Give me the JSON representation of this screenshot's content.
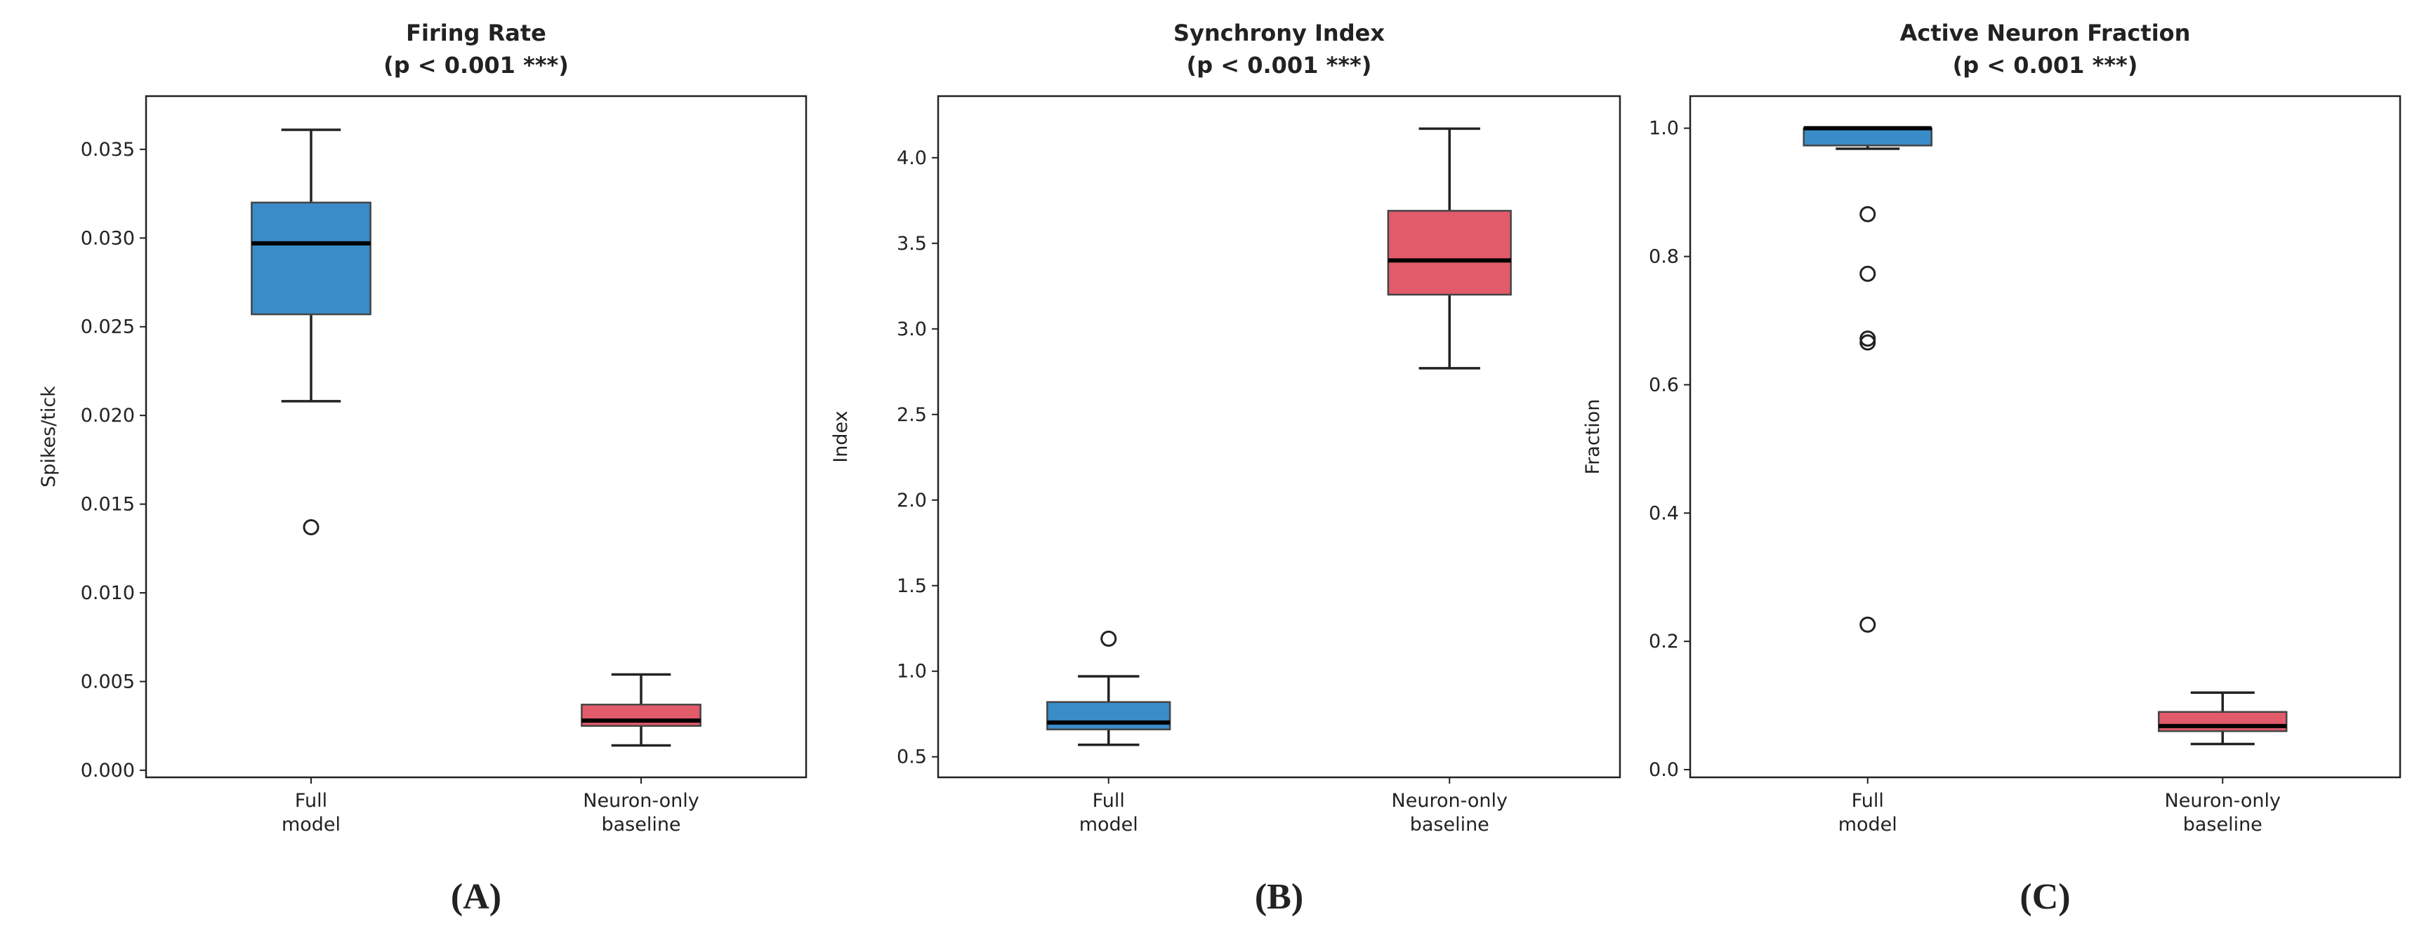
{
  "chart_data": [
    {
      "type": "box",
      "title": "Firing Rate",
      "subtitle": "(p < 0.001 ***)",
      "ylabel": "Spikes/tick",
      "panel_label": "(A)",
      "categories": [
        "Full model",
        "Neuron-only baseline"
      ],
      "colors": [
        "#3a8cc8",
        "#e25b6b"
      ],
      "boxes": [
        {
          "whislo": 0.0208,
          "q1": 0.0257,
          "med": 0.0297,
          "q3": 0.032,
          "whishi": 0.0361,
          "fliers": [
            0.0137
          ]
        },
        {
          "whislo": 0.0014,
          "q1": 0.0025,
          "med": 0.0028,
          "q3": 0.0037,
          "whishi": 0.0054,
          "fliers": []
        }
      ],
      "ylim": [
        -0.0004,
        0.038
      ],
      "yticks": [
        {
          "value": 0,
          "label": "0.000"
        },
        0.005,
        {
          "value": 0.01,
          "label": "0.010"
        },
        0.015,
        {
          "value": 0.02,
          "label": "0.020"
        },
        0.025,
        {
          "value": 0.03,
          "label": "0.030"
        },
        0.035
      ]
    },
    {
      "type": "box",
      "title": "Synchrony Index",
      "subtitle": "(p < 0.001 ***)",
      "ylabel": "Index",
      "panel_label": "(B)",
      "categories": [
        "Full model",
        "Neuron-only baseline"
      ],
      "colors": [
        "#3a8cc8",
        "#e25b6b"
      ],
      "boxes": [
        {
          "whislo": 0.57,
          "q1": 0.66,
          "med": 0.7,
          "q3": 0.82,
          "whishi": 0.97,
          "fliers": [
            1.19
          ]
        },
        {
          "whislo": 2.77,
          "q1": 3.2,
          "med": 3.4,
          "q3": 3.69,
          "whishi": 4.17,
          "fliers": []
        }
      ],
      "ylim": [
        0.38,
        4.36
      ],
      "yticks": [
        0.5,
        {
          "value": 1,
          "label": "1.0"
        },
        1.5,
        {
          "value": 2,
          "label": "2.0"
        },
        2.5,
        {
          "value": 3,
          "label": "3.0"
        },
        3.5,
        {
          "value": 4,
          "label": "4.0"
        }
      ]
    },
    {
      "type": "box",
      "title": "Active Neuron Fraction",
      "subtitle": "(p < 0.001 ***)",
      "ylabel": "Fraction",
      "panel_label": "(C)",
      "categories": [
        "Full model",
        "Neuron-only baseline"
      ],
      "colors": [
        "#3a8cc8",
        "#e25b6b"
      ],
      "boxes": [
        {
          "whislo": 0.968,
          "q1": 0.973,
          "med": 1,
          "q3": 1,
          "whishi": 1,
          "fliers": [
            0.866,
            0.773,
            0.672,
            0.666,
            0.226
          ]
        },
        {
          "whislo": 0.04,
          "q1": 0.06,
          "med": 0.068,
          "q3": 0.09,
          "whishi": 0.12,
          "fliers": []
        }
      ],
      "ylim": [
        -0.012,
        1.05
      ],
      "yticks": [
        {
          "value": 0,
          "label": "0.0"
        },
        0.2,
        0.4,
        0.6,
        0.8,
        {
          "value": 1,
          "label": "1.0"
        }
      ]
    }
  ]
}
